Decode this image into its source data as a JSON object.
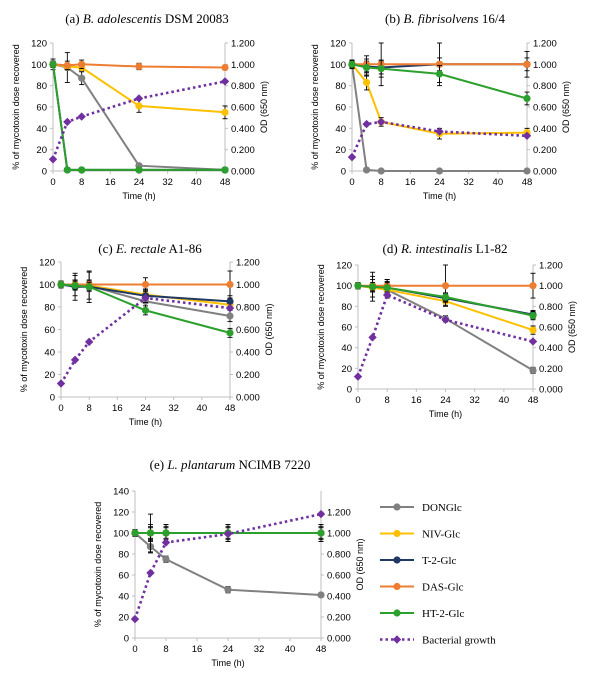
{
  "series_styles": [
    {
      "key": "DONGlc",
      "color": "#808080",
      "dashed": false,
      "marker": "circle"
    },
    {
      "key": "NIV-Glc",
      "color": "#FFC000",
      "dashed": false,
      "marker": "circle"
    },
    {
      "key": "T-2-Glc",
      "color": "#203864",
      "dashed": false,
      "marker": "circle"
    },
    {
      "key": "DAS-Glc",
      "color": "#ED7D31",
      "dashed": false,
      "marker": "circle"
    },
    {
      "key": "HT-2-Glc",
      "color": "#2CA02C",
      "dashed": false,
      "marker": "circle"
    },
    {
      "key": "Bacterial growth",
      "color": "#7030A0",
      "dashed": true,
      "marker": "diamond"
    }
  ],
  "legend": {
    "items": [
      "DONGlc",
      "NIV-Glc",
      "T-2-Glc",
      "DAS-Glc",
      "HT-2-Glc",
      "Bacterial growth"
    ]
  },
  "chart_data": [
    {
      "type": "line",
      "title_prefix": "(a) ",
      "title_species": "B. adolescentis",
      "title_strain": " DSM 20083",
      "xlabel": "Time (h)",
      "ylabel": "% of mycotoxin dose recovered",
      "y2label": "OD (650 nm)",
      "xticks": [
        0,
        8,
        16,
        24,
        32,
        40,
        48
      ],
      "xlim": [
        0,
        48
      ],
      "yticks": [
        0,
        20,
        40,
        60,
        80,
        100,
        120
      ],
      "ylim": [
        0,
        120
      ],
      "y2ticks": [
        "0.000",
        "0.200",
        "0.400",
        "0.600",
        "0.800",
        "1.000",
        "1.200"
      ],
      "y2lim": [
        0,
        1.2
      ],
      "series": [
        {
          "name": "DONGlc",
          "x": [
            0,
            4,
            8,
            24,
            48
          ],
          "values": [
            100,
            97,
            87,
            5,
            1
          ],
          "err": [
            5,
            14,
            6,
            2,
            2
          ]
        },
        {
          "name": "NIV-Glc",
          "x": [
            0,
            4,
            8,
            24,
            48
          ],
          "values": [
            100,
            98,
            97,
            61,
            55
          ],
          "err": [
            3,
            3,
            3,
            6,
            6
          ]
        },
        {
          "name": "T-2-Glc",
          "x": [
            0,
            4,
            8,
            24,
            48
          ],
          "values": [
            100,
            1,
            1,
            1,
            1
          ],
          "err": [
            0,
            0,
            0,
            0,
            0
          ]
        },
        {
          "name": "DAS-Glc",
          "x": [
            0,
            4,
            8,
            24,
            48
          ],
          "values": [
            100,
            99,
            100,
            98,
            97
          ],
          "err": [
            3,
            4,
            4,
            3,
            2
          ]
        },
        {
          "name": "HT-2-Glc",
          "x": [
            0,
            4,
            8,
            24,
            48
          ],
          "values": [
            100,
            1,
            1,
            1,
            1
          ],
          "err": [
            0,
            0,
            0,
            0,
            0
          ]
        },
        {
          "name": "Bacterial growth",
          "axis": "right",
          "x": [
            0,
            4,
            8,
            24,
            48
          ],
          "values": [
            0.11,
            0.46,
            0.51,
            0.68,
            0.84
          ],
          "err": [
            0,
            0,
            0,
            0,
            0
          ]
        }
      ]
    },
    {
      "type": "line",
      "title_prefix": "(b) ",
      "title_species": "B. fibrisolvens",
      "title_strain": " 16/4",
      "xlabel": "Time (h)",
      "ylabel": "% of mycotoxin dose recovered",
      "y2label": "OD (650 nm)",
      "xticks": [
        0,
        8,
        16,
        24,
        32,
        40,
        48
      ],
      "xlim": [
        0,
        48
      ],
      "yticks": [
        0,
        20,
        40,
        60,
        80,
        100,
        120
      ],
      "ylim": [
        0,
        120
      ],
      "y2ticks": [
        "0.000",
        "0.200",
        "0.400",
        "0.600",
        "0.800",
        "1.000",
        "1.200"
      ],
      "y2lim": [
        0,
        1.2
      ],
      "series": [
        {
          "name": "DONGlc",
          "x": [
            0,
            4,
            8,
            24,
            48
          ],
          "values": [
            100,
            1,
            0,
            0,
            0
          ],
          "err": [
            2,
            1,
            0,
            0,
            0
          ]
        },
        {
          "name": "NIV-Glc",
          "x": [
            0,
            4,
            8,
            24,
            48
          ],
          "values": [
            100,
            83,
            46,
            35,
            36
          ],
          "err": [
            3,
            7,
            4,
            5,
            4
          ]
        },
        {
          "name": "T-2-Glc",
          "x": [
            0,
            4,
            8,
            24,
            48
          ],
          "values": [
            100,
            98,
            97,
            100,
            100
          ],
          "err": [
            4,
            5,
            6,
            6,
            6
          ]
        },
        {
          "name": "DAS-Glc",
          "x": [
            0,
            4,
            8,
            24,
            48
          ],
          "values": [
            100,
            100,
            100,
            100,
            100
          ],
          "err": [
            4,
            8,
            20,
            20,
            12
          ]
        },
        {
          "name": "HT-2-Glc",
          "x": [
            0,
            4,
            8,
            24,
            48
          ],
          "values": [
            100,
            97,
            96,
            91,
            68
          ],
          "err": [
            3,
            8,
            8,
            8,
            6
          ]
        },
        {
          "name": "Bacterial growth",
          "axis": "right",
          "x": [
            0,
            4,
            8,
            24,
            48
          ],
          "values": [
            0.13,
            0.44,
            0.46,
            0.37,
            0.33
          ],
          "err": [
            0,
            0,
            0,
            0,
            0
          ]
        }
      ]
    },
    {
      "type": "line",
      "title_prefix": "(c) ",
      "title_species": "E. rectale",
      "title_strain": " A1-86",
      "xlabel": "Time (h)",
      "ylabel": "% of mycotoxin dose recovered",
      "y2label": "OD (650 nm)",
      "xticks": [
        0,
        8,
        16,
        24,
        32,
        40,
        48
      ],
      "xlim": [
        0,
        48
      ],
      "yticks": [
        0,
        20,
        40,
        60,
        80,
        100,
        120
      ],
      "ylim": [
        0,
        120
      ],
      "y2ticks": [
        "0.000",
        "0.200",
        "0.400",
        "0.600",
        "0.800",
        "1.000",
        "1.200"
      ],
      "y2lim": [
        0,
        1.2
      ],
      "series": [
        {
          "name": "DONGlc",
          "x": [
            0,
            4,
            8,
            24,
            48
          ],
          "values": [
            100,
            99,
            99,
            85,
            72
          ],
          "err": [
            2,
            9,
            12,
            8,
            5
          ]
        },
        {
          "name": "NIV-Glc",
          "x": [
            0,
            4,
            8,
            24,
            48
          ],
          "values": [
            100,
            100,
            99,
            91,
            82
          ],
          "err": [
            2,
            4,
            4,
            4,
            4
          ]
        },
        {
          "name": "T-2-Glc",
          "x": [
            0,
            4,
            8,
            24,
            48
          ],
          "values": [
            100,
            98,
            98,
            90,
            85
          ],
          "err": [
            3,
            12,
            14,
            6,
            5
          ]
        },
        {
          "name": "DAS-Glc",
          "x": [
            0,
            4,
            8,
            24,
            48
          ],
          "values": [
            100,
            100,
            100,
            100,
            100
          ],
          "err": [
            3,
            4,
            4,
            6,
            12
          ]
        },
        {
          "name": "HT-2-Glc",
          "x": [
            0,
            4,
            8,
            24,
            48
          ],
          "values": [
            100,
            99,
            98,
            77,
            57
          ],
          "err": [
            2,
            4,
            4,
            4,
            4
          ]
        },
        {
          "name": "Bacterial growth",
          "axis": "right",
          "x": [
            0,
            4,
            8,
            24,
            48
          ],
          "values": [
            0.12,
            0.33,
            0.49,
            0.88,
            0.79
          ],
          "err": [
            0,
            0,
            0,
            0,
            0
          ]
        }
      ]
    },
    {
      "type": "line",
      "title_prefix": "(d) ",
      "title_species": "R. intestinalis",
      "title_strain": " L1-82",
      "xlabel": "Time (h)",
      "ylabel": "% of mycotoxin dose recovered",
      "y2label": "OD (650 nm)",
      "xticks": [
        0,
        8,
        16,
        24,
        32,
        40,
        48
      ],
      "xlim": [
        0,
        48
      ],
      "yticks": [
        0,
        20,
        40,
        60,
        80,
        100,
        120
      ],
      "ylim": [
        0,
        120
      ],
      "y2ticks": [
        "0.000",
        "0.200",
        "0.400",
        "0.600",
        "0.800",
        "1.000",
        "1.200"
      ],
      "y2lim": [
        0,
        1.2
      ],
      "series": [
        {
          "name": "DONGlc",
          "x": [
            0,
            4,
            8,
            24,
            48
          ],
          "values": [
            100,
            99,
            96,
            68,
            18
          ],
          "err": [
            3,
            14,
            8,
            3,
            3
          ]
        },
        {
          "name": "NIV-Glc",
          "x": [
            0,
            4,
            8,
            24,
            48
          ],
          "values": [
            100,
            98,
            96,
            85,
            57
          ],
          "err": [
            2,
            4,
            5,
            4,
            4
          ]
        },
        {
          "name": "T-2-Glc",
          "x": [
            0,
            4,
            8,
            24,
            48
          ],
          "values": [
            100,
            99,
            98,
            88,
            72
          ],
          "err": [
            3,
            10,
            8,
            4,
            4
          ]
        },
        {
          "name": "DAS-Glc",
          "x": [
            0,
            4,
            8,
            24,
            48
          ],
          "values": [
            100,
            100,
            100,
            100,
            100
          ],
          "err": [
            3,
            6,
            6,
            20,
            12
          ]
        },
        {
          "name": "HT-2-Glc",
          "x": [
            0,
            4,
            8,
            24,
            48
          ],
          "values": [
            100,
            99,
            98,
            89,
            71
          ],
          "err": [
            2,
            4,
            5,
            4,
            4
          ]
        },
        {
          "name": "Bacterial growth",
          "axis": "right",
          "x": [
            0,
            4,
            8,
            24,
            48
          ],
          "values": [
            0.12,
            0.5,
            0.91,
            0.67,
            0.46
          ],
          "err": [
            0,
            0,
            0,
            0,
            0
          ]
        }
      ]
    },
    {
      "type": "line",
      "title_prefix": "(e) ",
      "title_species": "L. plantarum",
      "title_strain": " NCIMB 7220",
      "xlabel": "Time (h)",
      "ylabel": "% of mycotoxin dose recovered",
      "y2label": "OD (650 nm)",
      "xticks": [
        0,
        8,
        16,
        24,
        32,
        40,
        48
      ],
      "xlim": [
        0,
        48
      ],
      "yticks": [
        0,
        20,
        40,
        60,
        80,
        100,
        120,
        140
      ],
      "ylim": [
        0,
        140
      ],
      "y2ticks": [
        "0.000",
        "0.200",
        "0.400",
        "0.600",
        "0.800",
        "1.000",
        "1.200"
      ],
      "y2lim": [
        0,
        1.4
      ],
      "series": [
        {
          "name": "DONGlc",
          "x": [
            0,
            4,
            8,
            24,
            48
          ],
          "values": [
            100,
            87,
            75,
            46,
            41
          ],
          "err": [
            3,
            6,
            3,
            3,
            2
          ]
        },
        {
          "name": "NIV-Glc",
          "x": [
            0,
            4,
            8,
            24,
            48
          ],
          "values": [
            100,
            100,
            100,
            100,
            100
          ],
          "err": [
            3,
            5,
            5,
            5,
            5
          ]
        },
        {
          "name": "T-2-Glc",
          "x": [
            0,
            4,
            8,
            24,
            48
          ],
          "values": [
            100,
            100,
            100,
            100,
            100
          ],
          "err": [
            3,
            8,
            8,
            8,
            8
          ]
        },
        {
          "name": "DAS-Glc",
          "x": [
            0,
            4,
            8,
            24,
            48
          ],
          "values": [
            100,
            100,
            100,
            100,
            100
          ],
          "err": [
            3,
            18,
            8,
            8,
            8
          ]
        },
        {
          "name": "HT-2-Glc",
          "x": [
            0,
            4,
            8,
            24,
            48
          ],
          "values": [
            100,
            100,
            100,
            100,
            100
          ],
          "err": [
            3,
            6,
            6,
            6,
            6
          ]
        },
        {
          "name": "Bacterial growth",
          "axis": "right",
          "x": [
            0,
            4,
            8,
            24,
            48
          ],
          "values": [
            0.18,
            0.62,
            0.91,
            0.99,
            1.18
          ],
          "err": [
            0,
            0,
            0,
            0,
            0
          ]
        }
      ]
    }
  ]
}
